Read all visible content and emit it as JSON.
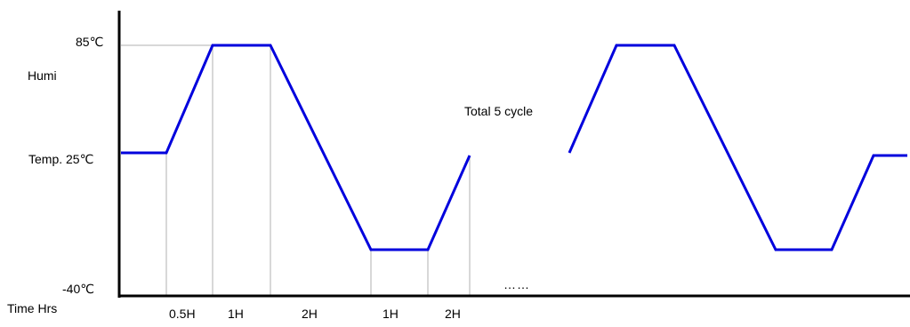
{
  "chart_data": {
    "type": "line",
    "title": "",
    "xlabel": "Time Hrs",
    "ylabel": "",
    "y_labels": [
      {
        "key": "max",
        "text": "85℃"
      },
      {
        "key": "mid",
        "text": "Temp. 25℃"
      },
      {
        "key": "min",
        "text": "-40℃"
      }
    ],
    "humidity_label": "Humi",
    "cycle_note": "Total 5 cycle",
    "ellipsis": "……",
    "duration_labels": [
      "0.5H",
      "1H",
      "2H",
      "1H",
      "2H"
    ],
    "profile_segments": [
      {
        "from": "Temp. 25℃",
        "to": "85℃",
        "duration": "0.5H"
      },
      {
        "from": "85℃",
        "to": "85℃",
        "duration": "1H"
      },
      {
        "from": "85℃",
        "to": "-40℃",
        "duration": "2H"
      },
      {
        "from": "-40℃",
        "to": "-40℃",
        "duration": "1H"
      },
      {
        "from": "-40℃",
        "to": "Temp. 25℃",
        "duration": "2H"
      }
    ],
    "line_color": "#0000dd",
    "axis_color": "#000000",
    "guide_color": "#b0b0b0"
  }
}
